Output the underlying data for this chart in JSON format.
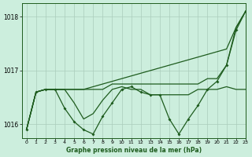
{
  "title": "Graphe pression niveau de la mer (hPa)",
  "background_color": "#cceedd",
  "grid_color": "#aaccbb",
  "line_color": "#1e5c1e",
  "xlim": [
    -0.5,
    23
  ],
  "ylim": [
    1015.75,
    1018.25
  ],
  "yticks": [
    1016,
    1017,
    1018
  ],
  "xticks": [
    0,
    1,
    2,
    3,
    4,
    5,
    6,
    7,
    8,
    9,
    10,
    11,
    12,
    13,
    14,
    15,
    16,
    17,
    18,
    19,
    20,
    21,
    22,
    23
  ],
  "series_upper": [
    1015.9,
    1016.6,
    1016.65,
    1016.65,
    1016.65,
    1016.65,
    1016.65,
    1016.65,
    1016.65,
    1016.75,
    1016.75,
    1016.75,
    1016.75,
    1016.75,
    1016.75,
    1016.75,
    1016.75,
    1016.75,
    1016.75,
    1016.85,
    1016.85,
    1017.1,
    1017.8,
    1018.1
  ],
  "series_mid": [
    1015.9,
    1016.6,
    1016.65,
    1016.65,
    1016.65,
    1016.4,
    1016.1,
    1016.2,
    1016.45,
    1016.65,
    1016.7,
    1016.65,
    1016.65,
    1016.55,
    1016.55,
    1016.55,
    1016.55,
    1016.55,
    1016.65,
    1016.65,
    1016.65,
    1016.7,
    1016.65,
    1016.65
  ],
  "series_main": [
    1015.9,
    1016.6,
    1016.65,
    1016.65,
    1016.3,
    1016.05,
    1015.9,
    1015.82,
    1016.15,
    1016.4,
    1016.65,
    1016.7,
    1016.6,
    1016.55,
    1016.55,
    1016.1,
    1015.82,
    1016.1,
    1016.35,
    1016.65,
    1016.8,
    1017.1,
    1017.75,
    1018.1
  ],
  "series_diagonal": [
    1015.9,
    1016.6,
    1016.65,
    1016.65,
    1016.65,
    1016.65,
    1016.65,
    1016.7,
    1016.75,
    1016.8,
    1016.85,
    1016.9,
    1016.95,
    1017.0,
    1017.05,
    1017.1,
    1017.15,
    1017.2,
    1017.25,
    1017.3,
    1017.35,
    1017.4,
    1017.8,
    1018.1
  ]
}
